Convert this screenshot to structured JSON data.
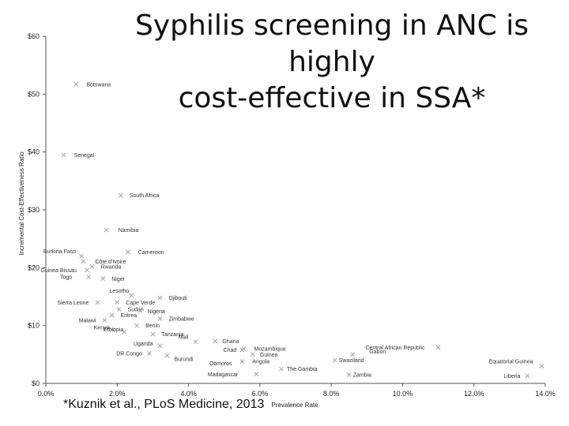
{
  "chart_data": {
    "type": "scatter",
    "title_lines": [
      "Syphilis screening in ANC is highly",
      "cost-effective in SSA*"
    ],
    "xlabel": "Prevalence Rate",
    "ylabel": "Incremental Cost-Effectiveness Ratio",
    "xlim": [
      0,
      14
    ],
    "ylim": [
      0,
      60
    ],
    "x_ticks": [
      {
        "value": 0,
        "label": "0.0%"
      },
      {
        "value": 2,
        "label": "2.0%"
      },
      {
        "value": 4,
        "label": "4.0%"
      },
      {
        "value": 6,
        "label": "6.0%"
      },
      {
        "value": 8,
        "label": "8.0%"
      },
      {
        "value": 10,
        "label": "10.0%"
      },
      {
        "value": 12,
        "label": "12.0%"
      },
      {
        "value": 14,
        "label": "14.0%"
      }
    ],
    "y_ticks": [
      {
        "value": 0,
        "label": "$0"
      },
      {
        "value": 10,
        "label": "$10"
      },
      {
        "value": 20,
        "label": "$20"
      },
      {
        "value": 30,
        "label": "$30"
      },
      {
        "value": 40,
        "label": "$40"
      },
      {
        "value": 50,
        "label": "$50"
      },
      {
        "value": 60,
        "label": "$60"
      }
    ],
    "grid": false,
    "legend": "none",
    "point_color": "#9aa3ad",
    "points": [
      {
        "label": "Botswana",
        "x": 0.85,
        "y": 51.7,
        "anchor": "right",
        "dx": 8,
        "dy": 0
      },
      {
        "label": "Senegal",
        "x": 0.5,
        "y": 39.5,
        "anchor": "right",
        "dx": 8,
        "dy": 0
      },
      {
        "label": "South Africa",
        "x": 2.1,
        "y": 32.5,
        "anchor": "right",
        "dx": 6,
        "dy": 0
      },
      {
        "label": "Namibia",
        "x": 1.7,
        "y": 26.5,
        "anchor": "right",
        "dx": 10,
        "dy": 0
      },
      {
        "label": "Cameroon",
        "x": 2.3,
        "y": 22.7,
        "anchor": "right",
        "dx": 8,
        "dy": 0
      },
      {
        "label": "Burkina Faso",
        "x": 1.0,
        "y": 22.0,
        "anchor": "left",
        "dx": -2,
        "dy": -6
      },
      {
        "label": "Côte d'Ivoire",
        "x": 1.05,
        "y": 21.1,
        "anchor": "right",
        "dx": 10,
        "dy": 0
      },
      {
        "label": "Rwanda",
        "x": 1.3,
        "y": 20.2,
        "anchor": "right",
        "dx": 6,
        "dy": 0
      },
      {
        "label": "Guinea Bissau",
        "x": 1.15,
        "y": 19.6,
        "anchor": "left",
        "dx": -8,
        "dy": 0
      },
      {
        "label": "Togo",
        "x": 1.2,
        "y": 18.4,
        "anchor": "left",
        "dx": -16,
        "dy": 0
      },
      {
        "label": "Niger",
        "x": 1.6,
        "y": 18.1,
        "anchor": "right",
        "dx": 6,
        "dy": 0
      },
      {
        "label": "Lesotho",
        "x": 2.4,
        "y": 15.2,
        "anchor": "left",
        "dx": 2,
        "dy": -6
      },
      {
        "label": "Djibouti",
        "x": 3.2,
        "y": 14.8,
        "anchor": "right",
        "dx": 6,
        "dy": 0
      },
      {
        "label": "Sierra Leone",
        "x": 1.45,
        "y": 14.0,
        "anchor": "left",
        "dx": -6,
        "dy": 0
      },
      {
        "label": "Cape Verde",
        "x": 2.0,
        "y": 14.0,
        "anchor": "right",
        "dx": 6,
        "dy": 0
      },
      {
        "label": "Sudan",
        "x": 2.05,
        "y": 12.8,
        "anchor": "right",
        "dx": 6,
        "dy": 0
      },
      {
        "label": "Nigeria",
        "x": 2.65,
        "y": 12.5,
        "anchor": "right",
        "dx": 4,
        "dy": 0
      },
      {
        "label": "Eritrea",
        "x": 1.85,
        "y": 11.8,
        "anchor": "right",
        "dx": 6,
        "dy": 0
      },
      {
        "label": "Zimbabwe",
        "x": 3.2,
        "y": 11.2,
        "anchor": "right",
        "dx": 6,
        "dy": 0
      },
      {
        "label": "Malawi",
        "x": 1.65,
        "y": 10.9,
        "anchor": "left",
        "dx": -6,
        "dy": 0
      },
      {
        "label": "Benin",
        "x": 2.55,
        "y": 10.0,
        "anchor": "right",
        "dx": 6,
        "dy": 0
      },
      {
        "label": "Kenya",
        "x": 1.85,
        "y": 9.3,
        "anchor": "left",
        "dx": 2,
        "dy": -3
      },
      {
        "label": "Ethiopia",
        "x": 2.2,
        "y": 8.9,
        "anchor": "left",
        "dx": 4,
        "dy": -3
      },
      {
        "label": "Tanzania",
        "x": 3.0,
        "y": 8.5,
        "anchor": "right",
        "dx": 6,
        "dy": 0
      },
      {
        "label": "Mali",
        "x": 4.2,
        "y": 7.2,
        "anchor": "left",
        "dx": -4,
        "dy": -6
      },
      {
        "label": "Uganda",
        "x": 3.2,
        "y": 6.5,
        "anchor": "left",
        "dx": -4,
        "dy": -3
      },
      {
        "label": "Ghana",
        "x": 4.75,
        "y": 7.3,
        "anchor": "right",
        "dx": 4,
        "dy": 0
      },
      {
        "label": "DR Congo",
        "x": 2.9,
        "y": 5.2,
        "anchor": "left",
        "dx": -4,
        "dy": 0
      },
      {
        "label": "Chad",
        "x": 5.5,
        "y": 5.8,
        "anchor": "left",
        "dx": -2,
        "dy": 0
      },
      {
        "label": "Mozambique",
        "x": 5.55,
        "y": 6.0,
        "anchor": "right",
        "dx": 8,
        "dy": 0
      },
      {
        "label": "Burundi",
        "x": 3.4,
        "y": 4.8,
        "anchor": "right",
        "dx": 4,
        "dy": 4
      },
      {
        "label": "Guinea",
        "x": 5.8,
        "y": 5.0,
        "anchor": "right",
        "dx": 4,
        "dy": 0
      },
      {
        "label": "Comoros",
        "x": 4.7,
        "y": 3.5,
        "anchor": "right",
        "dx": -10,
        "dy": 0
      },
      {
        "label": "Angola",
        "x": 5.5,
        "y": 3.8,
        "anchor": "right",
        "dx": 8,
        "dy": 0
      },
      {
        "label": "The Gambia",
        "x": 6.6,
        "y": 2.5,
        "anchor": "right",
        "dx": 2,
        "dy": 0
      },
      {
        "label": "Madagascar",
        "x": 5.9,
        "y": 1.6,
        "anchor": "left",
        "dx": -18,
        "dy": 0
      },
      {
        "label": "Gabon",
        "x": 8.6,
        "y": 5.0,
        "anchor": "right",
        "dx": 16,
        "dy": -4
      },
      {
        "label": "Swaziland",
        "x": 8.1,
        "y": 4.0,
        "anchor": "right",
        "dx": 0,
        "dy": 0
      },
      {
        "label": "Central African Republic",
        "x": 11.0,
        "y": 6.2,
        "anchor": "left",
        "dx": -12,
        "dy": 0
      },
      {
        "label": "Zambia",
        "x": 8.5,
        "y": 1.5,
        "anchor": "right",
        "dx": 0,
        "dy": 0
      },
      {
        "label": "Equatorial Guinea",
        "x": 13.9,
        "y": 3.0,
        "anchor": "left",
        "dx": -6,
        "dy": -6
      },
      {
        "label": "Liberia",
        "x": 13.5,
        "y": 1.3,
        "anchor": "left",
        "dx": -4,
        "dy": 0
      }
    ]
  },
  "footnote": "*Kuznik et al., PLoS Medicine, 2013"
}
